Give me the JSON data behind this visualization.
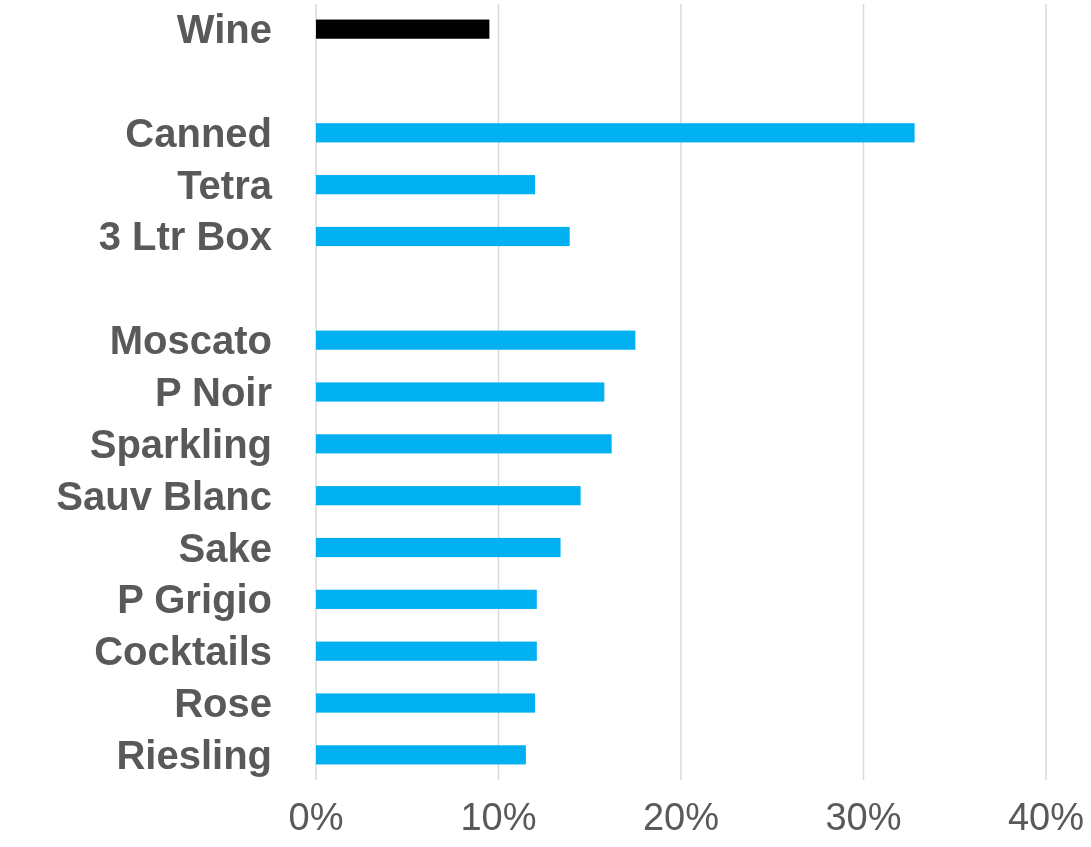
{
  "chart_data": {
    "type": "bar",
    "orientation": "horizontal",
    "categories": [
      "Wine",
      null,
      "Canned",
      "Tetra",
      "3 Ltr Box",
      null,
      "Moscato",
      "P Noir",
      "Sparkling",
      "Sauv Blanc",
      "Sake",
      "P Grigio",
      "Cocktails",
      "Rose",
      "Riesling"
    ],
    "values": [
      9.5,
      null,
      32.8,
      12.0,
      13.9,
      null,
      17.5,
      15.8,
      16.2,
      14.5,
      13.4,
      12.1,
      12.1,
      12.0,
      11.5
    ],
    "colors": [
      "#000000",
      null,
      "#00b0f0",
      "#00b0f0",
      "#00b0f0",
      null,
      "#00b0f0",
      "#00b0f0",
      "#00b0f0",
      "#00b0f0",
      "#00b0f0",
      "#00b0f0",
      "#00b0f0",
      "#00b0f0",
      "#00b0f0"
    ],
    "xlim": [
      0,
      40
    ],
    "xticks": [
      {
        "value": 0,
        "label": "0%"
      },
      {
        "value": 10,
        "label": "10%"
      },
      {
        "value": 20,
        "label": "20%"
      },
      {
        "value": 30,
        "label": "30%"
      },
      {
        "value": 40,
        "label": "40%"
      }
    ],
    "grid": "x"
  }
}
